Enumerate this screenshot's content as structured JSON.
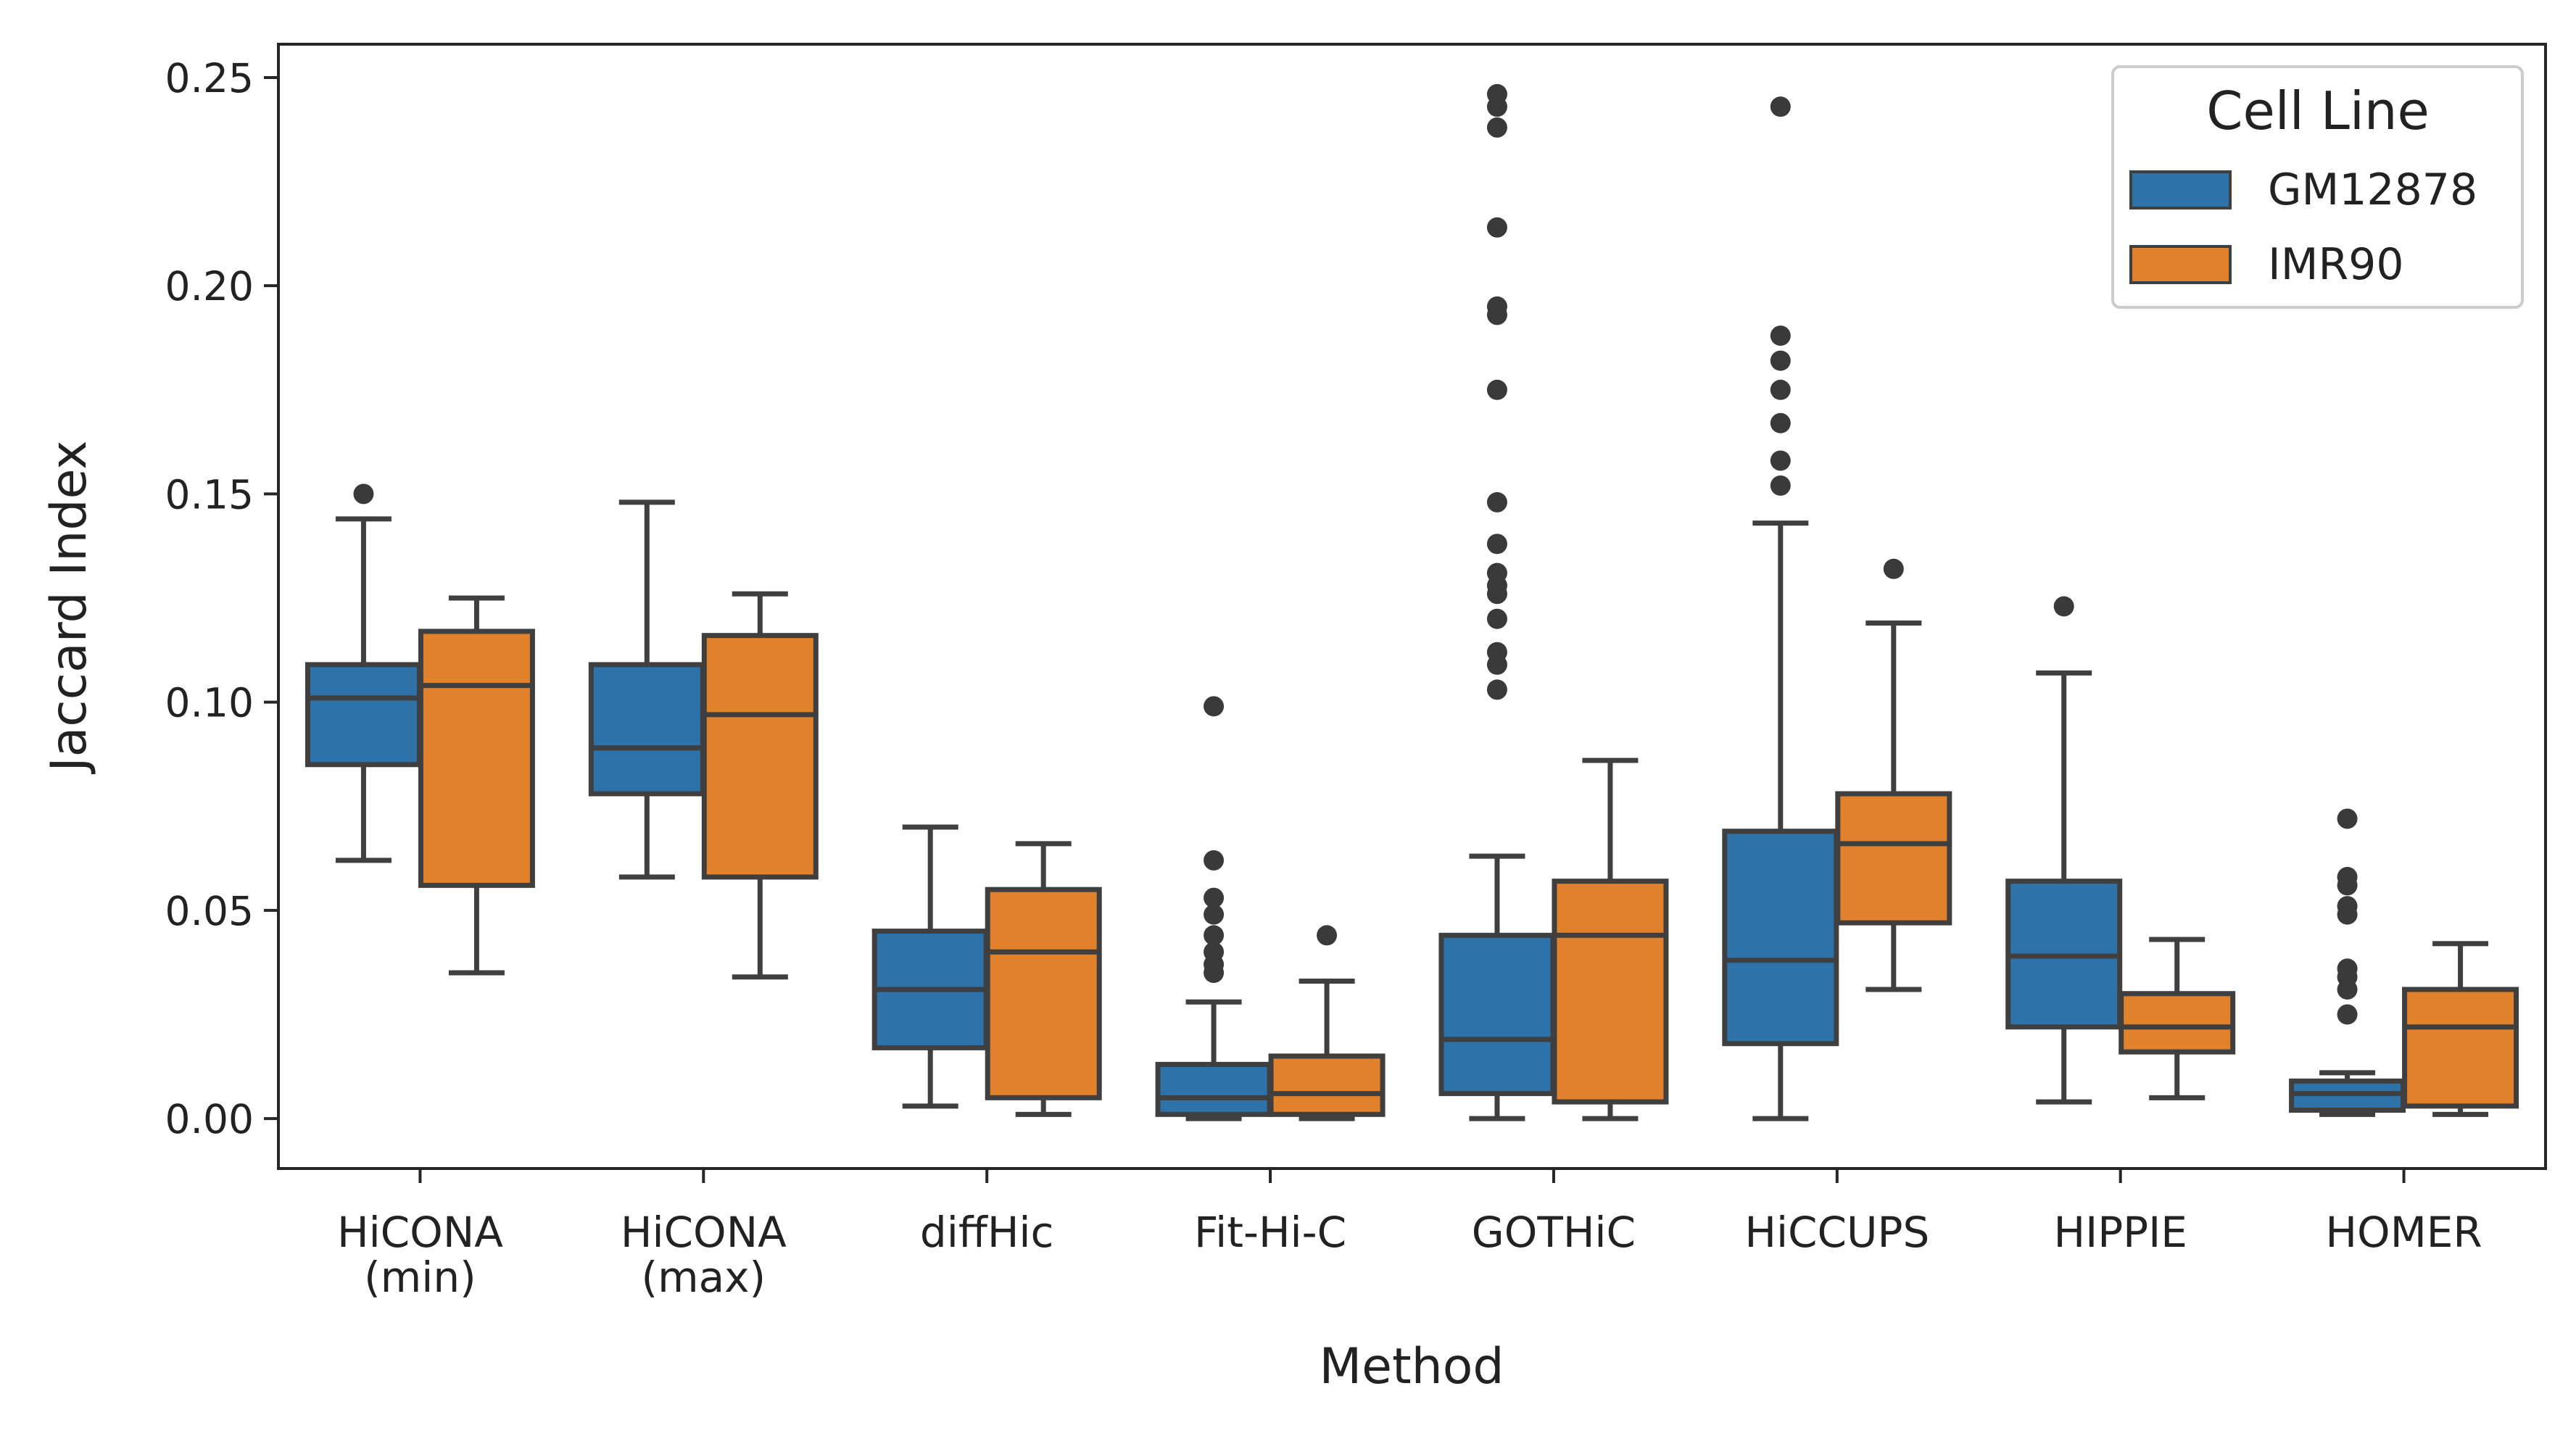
{
  "chart_data": {
    "type": "box",
    "title": "",
    "xlabel": "Method",
    "ylabel": "Jaccard Index",
    "ylim": [
      -0.012,
      0.258
    ],
    "yticks": [
      0.0,
      0.05,
      0.1,
      0.15,
      0.2,
      0.25
    ],
    "ytick_labels": [
      "0.00",
      "0.05",
      "0.10",
      "0.15",
      "0.20",
      "0.25"
    ],
    "grid": false,
    "categories": [
      {
        "lines": [
          "HiCONA",
          "(min)"
        ]
      },
      {
        "lines": [
          "HiCONA",
          "(max)"
        ]
      },
      {
        "lines": [
          "diffHic"
        ]
      },
      {
        "lines": [
          "Fit-Hi-C"
        ]
      },
      {
        "lines": [
          "GOTHiC"
        ]
      },
      {
        "lines": [
          "HiCCUPS"
        ]
      },
      {
        "lines": [
          "HIPPIE"
        ]
      },
      {
        "lines": [
          "HOMER"
        ]
      }
    ],
    "legend": {
      "title": "Cell Line",
      "position": "top-right"
    },
    "series": [
      {
        "name": "GM12878",
        "color": "#2d72a8",
        "boxes": [
          {
            "whislo": 0.062,
            "q1": 0.085,
            "med": 0.101,
            "q3": 0.109,
            "whishi": 0.144,
            "fliers": [
              0.15
            ]
          },
          {
            "whislo": 0.058,
            "q1": 0.078,
            "med": 0.089,
            "q3": 0.109,
            "whishi": 0.148,
            "fliers": []
          },
          {
            "whislo": 0.003,
            "q1": 0.017,
            "med": 0.031,
            "q3": 0.045,
            "whishi": 0.07,
            "fliers": []
          },
          {
            "whislo": 0.0,
            "q1": 0.001,
            "med": 0.005,
            "q3": 0.013,
            "whishi": 0.028,
            "fliers": [
              0.099,
              0.062,
              0.053,
              0.049,
              0.044,
              0.04,
              0.037,
              0.035
            ]
          },
          {
            "whislo": 0.0,
            "q1": 0.006,
            "med": 0.019,
            "q3": 0.044,
            "whishi": 0.063,
            "fliers": [
              0.246,
              0.243,
              0.238,
              0.214,
              0.195,
              0.193,
              0.175,
              0.148,
              0.138,
              0.131,
              0.128,
              0.126,
              0.12,
              0.112,
              0.109,
              0.103
            ]
          },
          {
            "whislo": 0.0,
            "q1": 0.018,
            "med": 0.038,
            "q3": 0.069,
            "whishi": 0.143,
            "fliers": [
              0.243,
              0.188,
              0.182,
              0.175,
              0.167,
              0.158,
              0.152
            ]
          },
          {
            "whislo": 0.004,
            "q1": 0.022,
            "med": 0.039,
            "q3": 0.057,
            "whishi": 0.107,
            "fliers": [
              0.123
            ]
          },
          {
            "whislo": 0.001,
            "q1": 0.002,
            "med": 0.006,
            "q3": 0.009,
            "whishi": 0.011,
            "fliers": [
              0.072,
              0.058,
              0.056,
              0.051,
              0.049,
              0.036,
              0.034,
              0.031,
              0.025
            ]
          }
        ]
      },
      {
        "name": "IMR90",
        "color": "#e1812c",
        "boxes": [
          {
            "whislo": 0.035,
            "q1": 0.056,
            "med": 0.104,
            "q3": 0.117,
            "whishi": 0.125,
            "fliers": []
          },
          {
            "whislo": 0.034,
            "q1": 0.058,
            "med": 0.097,
            "q3": 0.116,
            "whishi": 0.126,
            "fliers": []
          },
          {
            "whislo": 0.001,
            "q1": 0.005,
            "med": 0.04,
            "q3": 0.055,
            "whishi": 0.066,
            "fliers": []
          },
          {
            "whislo": 0.0,
            "q1": 0.001,
            "med": 0.006,
            "q3": 0.015,
            "whishi": 0.033,
            "fliers": [
              0.044
            ]
          },
          {
            "whislo": 0.0,
            "q1": 0.004,
            "med": 0.044,
            "q3": 0.057,
            "whishi": 0.086,
            "fliers": []
          },
          {
            "whislo": 0.031,
            "q1": 0.047,
            "med": 0.066,
            "q3": 0.078,
            "whishi": 0.119,
            "fliers": [
              0.132
            ]
          },
          {
            "whislo": 0.005,
            "q1": 0.016,
            "med": 0.022,
            "q3": 0.03,
            "whishi": 0.043,
            "fliers": []
          },
          {
            "whislo": 0.001,
            "q1": 0.003,
            "med": 0.022,
            "q3": 0.031,
            "whishi": 0.042,
            "fliers": []
          }
        ]
      }
    ]
  }
}
